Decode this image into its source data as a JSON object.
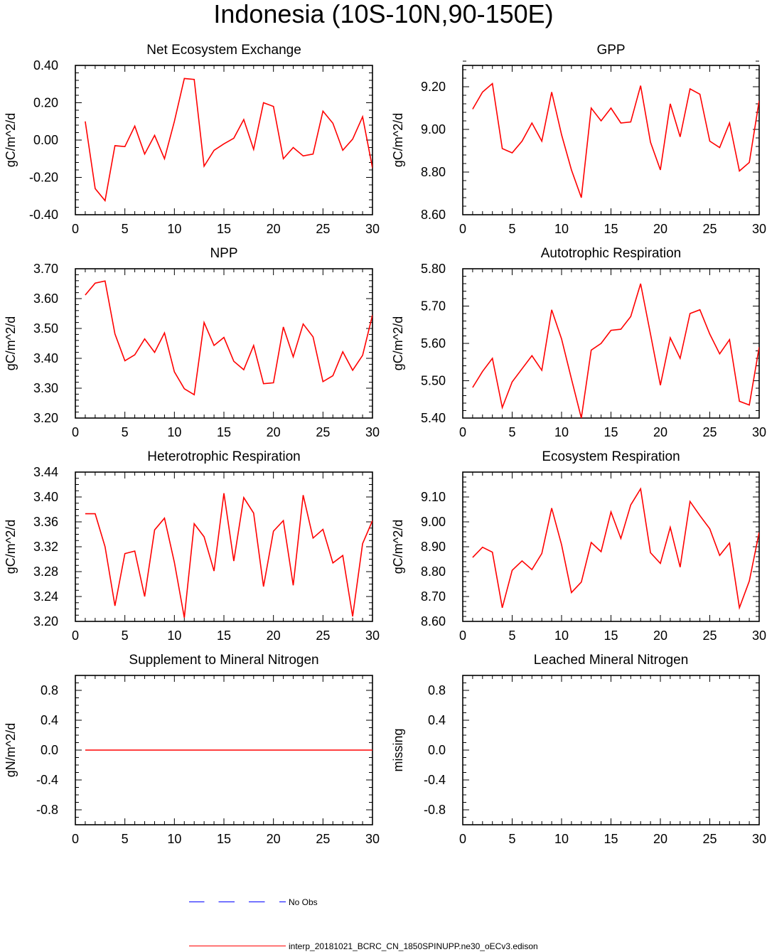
{
  "title": "Indonesia (10S-10N,90-150E)",
  "colors": {
    "model": "#ff0000",
    "obs": "#0000ff",
    "axis": "#000000"
  },
  "legend": {
    "obs_label": "No Obs",
    "model_label": "interp_20181021_BCRC_CN_1850SPINUPP.ne30_oECv3.edison"
  },
  "chart_data": [
    {
      "type": "line",
      "title": "Net Ecosystem Exchange",
      "xlabel": "",
      "ylabel": "gC/m^2/d",
      "xlim": [
        0,
        30
      ],
      "ylim": [
        -0.4,
        0.4
      ],
      "x_ticks": [
        "0",
        "5",
        "10",
        "15",
        "20",
        "25",
        "30"
      ],
      "y_ticks": [
        "-0.40",
        "-0.20",
        "0.00",
        "0.20",
        "0.40"
      ],
      "y_tick_values": [
        -0.4,
        -0.2,
        0.0,
        0.2,
        0.4
      ],
      "y_minor_step": 0.04,
      "series": [
        {
          "name": "interp_20181021_BCRC_CN_1850SPINUPP.ne30_oECv3.edison",
          "x": [
            1,
            2,
            3,
            4,
            5,
            6,
            7,
            8,
            9,
            10,
            11,
            12,
            13,
            14,
            15,
            16,
            17,
            18,
            19,
            20,
            21,
            22,
            23,
            24,
            25,
            26,
            27,
            28,
            29,
            30
          ],
          "values": [
            0.1,
            -0.26,
            -0.325,
            -0.03,
            -0.035,
            0.075,
            -0.075,
            0.025,
            -0.1,
            0.1,
            0.33,
            0.325,
            -0.14,
            -0.055,
            -0.02,
            0.01,
            0.11,
            -0.05,
            0.2,
            0.18,
            -0.1,
            -0.04,
            -0.085,
            -0.075,
            0.155,
            0.09,
            -0.055,
            0.005,
            0.125,
            -0.15
          ]
        }
      ]
    },
    {
      "type": "line",
      "title": "GPP",
      "xlabel": "",
      "ylabel": "gC/m^2/d",
      "xlim": [
        0,
        30
      ],
      "ylim": [
        8.6,
        9.3
      ],
      "x_ticks": [
        "0",
        "5",
        "10",
        "15",
        "20",
        "25",
        "30"
      ],
      "y_ticks": [
        "8.60",
        "8.80",
        "9.00",
        "9.20"
      ],
      "y_tick_values": [
        8.6,
        8.8,
        9.0,
        9.2
      ],
      "y_minor_step": 0.04,
      "series": [
        {
          "name": "interp_20181021_BCRC_CN_1850SPINUPP.ne30_oECv3.edison",
          "x": [
            1,
            2,
            3,
            4,
            5,
            6,
            7,
            8,
            9,
            10,
            11,
            12,
            13,
            14,
            15,
            16,
            17,
            18,
            19,
            20,
            21,
            22,
            23,
            24,
            25,
            26,
            27,
            28,
            29,
            30
          ],
          "values": [
            9.095,
            9.175,
            9.215,
            8.91,
            8.89,
            8.945,
            9.03,
            8.945,
            9.175,
            8.975,
            8.81,
            8.68,
            9.1,
            9.04,
            9.1,
            9.03,
            9.035,
            9.205,
            8.94,
            8.81,
            9.12,
            8.965,
            9.19,
            9.165,
            8.945,
            8.915,
            9.03,
            8.805,
            8.845,
            9.135
          ]
        }
      ]
    },
    {
      "type": "line",
      "title": "NPP",
      "xlabel": "",
      "ylabel": "gC/m^2/d",
      "xlim": [
        0,
        30
      ],
      "ylim": [
        3.2,
        3.7
      ],
      "x_ticks": [
        "0",
        "5",
        "10",
        "15",
        "20",
        "25",
        "30"
      ],
      "y_ticks": [
        "3.20",
        "3.30",
        "3.40",
        "3.50",
        "3.60",
        "3.70"
      ],
      "y_tick_values": [
        3.2,
        3.3,
        3.4,
        3.5,
        3.6,
        3.7
      ],
      "y_minor_step": 0.02,
      "series": [
        {
          "name": "interp_20181021_BCRC_CN_1850SPINUPP.ne30_oECv3.edison",
          "x": [
            1,
            2,
            3,
            4,
            5,
            6,
            7,
            8,
            9,
            10,
            11,
            12,
            13,
            14,
            15,
            16,
            17,
            18,
            19,
            20,
            21,
            22,
            23,
            24,
            25,
            26,
            27,
            28,
            29,
            30
          ],
          "values": [
            3.612,
            3.652,
            3.659,
            3.482,
            3.392,
            3.412,
            3.465,
            3.42,
            3.485,
            3.355,
            3.298,
            3.278,
            3.52,
            3.443,
            3.47,
            3.39,
            3.362,
            3.443,
            3.315,
            3.318,
            3.505,
            3.405,
            3.515,
            3.472,
            3.322,
            3.342,
            3.422,
            3.36,
            3.41,
            3.545
          ]
        }
      ]
    },
    {
      "type": "line",
      "title": "Autotrophic Respiration",
      "xlabel": "",
      "ylabel": "gC/m^2/d",
      "xlim": [
        0,
        30
      ],
      "ylim": [
        5.4,
        5.8
      ],
      "x_ticks": [
        "0",
        "5",
        "10",
        "15",
        "20",
        "25",
        "30"
      ],
      "y_ticks": [
        "5.40",
        "5.50",
        "5.60",
        "5.70",
        "5.80"
      ],
      "y_tick_values": [
        5.4,
        5.5,
        5.6,
        5.7,
        5.8
      ],
      "y_minor_step": 0.02,
      "series": [
        {
          "name": "interp_20181021_BCRC_CN_1850SPINUPP.ne30_oECv3.edison",
          "x": [
            1,
            2,
            3,
            4,
            5,
            6,
            7,
            8,
            9,
            10,
            11,
            12,
            13,
            14,
            15,
            16,
            17,
            18,
            19,
            20,
            21,
            22,
            23,
            24,
            25,
            26,
            27,
            28,
            29,
            30
          ],
          "values": [
            5.482,
            5.525,
            5.56,
            5.428,
            5.497,
            5.532,
            5.567,
            5.528,
            5.69,
            5.612,
            5.505,
            5.4,
            5.582,
            5.6,
            5.635,
            5.638,
            5.672,
            5.76,
            5.625,
            5.488,
            5.615,
            5.56,
            5.68,
            5.69,
            5.625,
            5.572,
            5.61,
            5.445,
            5.435,
            5.59
          ]
        }
      ]
    },
    {
      "type": "line",
      "title": "Heterotrophic Respiration",
      "xlabel": "",
      "ylabel": "gC/m^2/d",
      "xlim": [
        0,
        30
      ],
      "ylim": [
        3.2,
        3.44
      ],
      "x_ticks": [
        "0",
        "5",
        "10",
        "15",
        "20",
        "25",
        "30"
      ],
      "y_ticks": [
        "3.20",
        "3.24",
        "3.28",
        "3.32",
        "3.36",
        "3.40",
        "3.44"
      ],
      "y_tick_values": [
        3.2,
        3.24,
        3.28,
        3.32,
        3.36,
        3.4,
        3.44
      ],
      "y_minor_step": 0.01,
      "series": [
        {
          "name": "interp_20181021_BCRC_CN_1850SPINUPP.ne30_oECv3.edison",
          "x": [
            1,
            2,
            3,
            4,
            5,
            6,
            7,
            8,
            9,
            10,
            11,
            12,
            13,
            14,
            15,
            16,
            17,
            18,
            19,
            20,
            21,
            22,
            23,
            24,
            25,
            26,
            27,
            28,
            29,
            30
          ],
          "values": [
            3.373,
            3.373,
            3.32,
            3.225,
            3.309,
            3.313,
            3.24,
            3.347,
            3.366,
            3.295,
            3.206,
            3.357,
            3.336,
            3.281,
            3.406,
            3.297,
            3.399,
            3.374,
            3.256,
            3.345,
            3.362,
            3.258,
            3.403,
            3.334,
            3.348,
            3.294,
            3.306,
            3.208,
            3.325,
            3.362
          ]
        }
      ]
    },
    {
      "type": "line",
      "title": "Ecosystem Respiration",
      "xlabel": "",
      "ylabel": "gC/m^2/d",
      "xlim": [
        0,
        30
      ],
      "ylim": [
        8.6,
        9.2
      ],
      "x_ticks": [
        "0",
        "5",
        "10",
        "15",
        "20",
        "25",
        "30"
      ],
      "y_ticks": [
        "8.60",
        "8.70",
        "8.80",
        "8.90",
        "9.00",
        "9.10"
      ],
      "y_tick_values": [
        8.6,
        8.7,
        8.8,
        8.9,
        9.0,
        9.1
      ],
      "y_minor_step": 0.02,
      "series": [
        {
          "name": "interp_20181021_BCRC_CN_1850SPINUPP.ne30_oECv3.edison",
          "x": [
            1,
            2,
            3,
            4,
            5,
            6,
            7,
            8,
            9,
            10,
            11,
            12,
            13,
            14,
            15,
            16,
            17,
            18,
            19,
            20,
            21,
            22,
            23,
            24,
            25,
            26,
            27,
            28,
            29,
            30
          ],
          "values": [
            8.857,
            8.898,
            8.878,
            8.655,
            8.805,
            8.843,
            8.808,
            8.873,
            9.055,
            8.908,
            8.716,
            8.758,
            8.917,
            8.88,
            9.04,
            8.933,
            9.068,
            9.133,
            8.876,
            8.833,
            8.978,
            8.818,
            9.082,
            9.025,
            8.972,
            8.865,
            8.915,
            8.655,
            8.762,
            8.958
          ]
        }
      ]
    },
    {
      "type": "line",
      "title": "Supplement to Mineral Nitrogen",
      "xlabel": "",
      "ylabel": "gN/m^2/d",
      "xlim": [
        0,
        30
      ],
      "ylim": [
        -1.0,
        1.0
      ],
      "x_ticks": [
        "0",
        "5",
        "10",
        "15",
        "20",
        "25",
        "30"
      ],
      "y_ticks": [
        "-0.8",
        "-0.4",
        "0.0",
        "0.4",
        "0.8"
      ],
      "y_tick_values": [
        -0.8,
        -0.4,
        0.0,
        0.4,
        0.8
      ],
      "y_minor_step": 0.1,
      "series": [
        {
          "name": "interp_20181021_BCRC_CN_1850SPINUPP.ne30_oECv3.edison",
          "x": [
            1,
            2,
            3,
            4,
            5,
            6,
            7,
            8,
            9,
            10,
            11,
            12,
            13,
            14,
            15,
            16,
            17,
            18,
            19,
            20,
            21,
            22,
            23,
            24,
            25,
            26,
            27,
            28,
            29,
            30
          ],
          "values": [
            0,
            0,
            0,
            0,
            0,
            0,
            0,
            0,
            0,
            0,
            0,
            0,
            0,
            0,
            0,
            0,
            0,
            0,
            0,
            0,
            0,
            0,
            0,
            0,
            0,
            0,
            0,
            0,
            0,
            0
          ]
        }
      ]
    },
    {
      "type": "line",
      "title": "Leached Mineral Nitrogen",
      "xlabel": "",
      "ylabel": "missing",
      "xlim": [
        0,
        30
      ],
      "ylim": [
        -1.0,
        1.0
      ],
      "x_ticks": [
        "0",
        "5",
        "10",
        "15",
        "20",
        "25",
        "30"
      ],
      "y_ticks": [
        "-0.8",
        "-0.4",
        "0.0",
        "0.4",
        "0.8"
      ],
      "y_tick_values": [
        -0.8,
        -0.4,
        0.0,
        0.4,
        0.8
      ],
      "y_minor_step": 0.1,
      "series": []
    }
  ]
}
